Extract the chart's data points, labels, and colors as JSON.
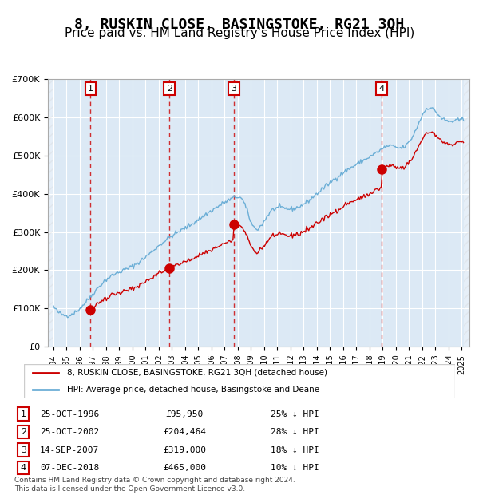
{
  "title": "8, RUSKIN CLOSE, BASINGSTOKE, RG21 3QH",
  "subtitle": "Price paid vs. HM Land Registry's House Price Index (HPI)",
  "xlabel": "",
  "ylabel": "",
  "ylim": [
    0,
    700000
  ],
  "yticks": [
    0,
    100000,
    200000,
    300000,
    400000,
    500000,
    600000,
    700000
  ],
  "ytick_labels": [
    "£0",
    "£100K",
    "£200K",
    "£300K",
    "£400K",
    "£500K",
    "£600K",
    "£700K"
  ],
  "background_color": "#dce9f5",
  "plot_bg_color": "#dce9f5",
  "grid_color": "#ffffff",
  "hpi_color": "#6baed6",
  "price_color": "#cc0000",
  "sale_marker_color": "#cc0000",
  "vline_color": "#cc0000",
  "title_fontsize": 13,
  "subtitle_fontsize": 11,
  "transactions": [
    {
      "date": "1996-10-25",
      "price": 95950,
      "label": "1"
    },
    {
      "date": "2002-10-25",
      "price": 204464,
      "label": "2"
    },
    {
      "date": "2007-09-14",
      "price": 319000,
      "label": "3"
    },
    {
      "date": "2018-12-07",
      "price": 465000,
      "label": "4"
    }
  ],
  "table_rows": [
    {
      "num": "1",
      "date": "25-OCT-1996",
      "price": "£95,950",
      "note": "25% ↓ HPI"
    },
    {
      "num": "2",
      "date": "25-OCT-2002",
      "price": "£204,464",
      "note": "28% ↓ HPI"
    },
    {
      "num": "3",
      "date": "14-SEP-2007",
      "price": "£319,000",
      "note": "18% ↓ HPI"
    },
    {
      "num": "4",
      "date": "07-DEC-2018",
      "price": "£465,000",
      "note": "10% ↓ HPI"
    }
  ],
  "footnote": "Contains HM Land Registry data © Crown copyright and database right 2024.\nThis data is licensed under the Open Government Licence v3.0.",
  "legend_entries": [
    "8, RUSKIN CLOSE, BASINGSTOKE, RG21 3QH (detached house)",
    "HPI: Average price, detached house, Basingstoke and Deane"
  ]
}
